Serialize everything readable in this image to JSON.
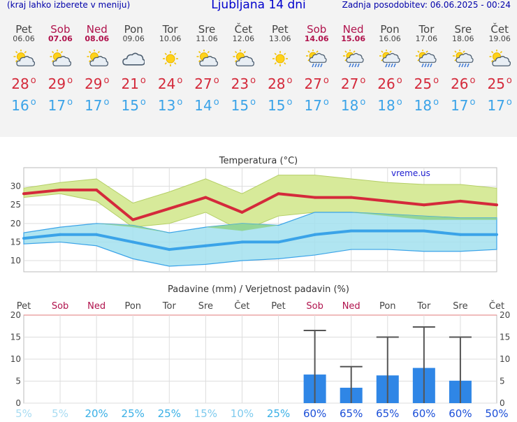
{
  "header": {
    "left_note": "(kraj lahko izberete v meniju)",
    "title": "Ljubljana 14 dni",
    "updated": "Zadnja posodobitev: 06.06.2025 - 00:24"
  },
  "days": [
    {
      "name": "Pet",
      "date": "06.06",
      "weekend": false,
      "icon": "sun-cloud-icon",
      "tmax": "28",
      "tmin": "16"
    },
    {
      "name": "Sob",
      "date": "07.06",
      "weekend": true,
      "icon": "sun-cloud-icon",
      "tmax": "29",
      "tmin": "17"
    },
    {
      "name": "Ned",
      "date": "08.06",
      "weekend": true,
      "icon": "sun-cloud-icon",
      "tmax": "29",
      "tmin": "17"
    },
    {
      "name": "Pon",
      "date": "09.06",
      "weekend": false,
      "icon": "cloud-icon",
      "tmax": "21",
      "tmin": "15"
    },
    {
      "name": "Tor",
      "date": "10.06",
      "weekend": false,
      "icon": "sun-icon",
      "tmax": "24",
      "tmin": "13"
    },
    {
      "name": "Sre",
      "date": "11.06",
      "weekend": false,
      "icon": "sun-cloud-icon",
      "tmax": "27",
      "tmin": "14"
    },
    {
      "name": "Čet",
      "date": "12.06",
      "weekend": false,
      "icon": "sun-cloud-icon",
      "tmax": "23",
      "tmin": "15"
    },
    {
      "name": "Pet",
      "date": "13.06",
      "weekend": false,
      "icon": "sun-icon",
      "tmax": "28",
      "tmin": "15"
    },
    {
      "name": "Sob",
      "date": "14.06",
      "weekend": true,
      "icon": "sun-rain-icon",
      "tmax": "27",
      "tmin": "17"
    },
    {
      "name": "Ned",
      "date": "15.06",
      "weekend": true,
      "icon": "sun-rain-icon",
      "tmax": "27",
      "tmin": "18"
    },
    {
      "name": "Pon",
      "date": "16.06",
      "weekend": false,
      "icon": "sun-rain-icon",
      "tmax": "26",
      "tmin": "18"
    },
    {
      "name": "Tor",
      "date": "17.06",
      "weekend": false,
      "icon": "sun-rain-icon",
      "tmax": "25",
      "tmin": "18"
    },
    {
      "name": "Sre",
      "date": "18.06",
      "weekend": false,
      "icon": "sun-rain-icon",
      "tmax": "26",
      "tmin": "17"
    },
    {
      "name": "Čet",
      "date": "19.06",
      "weekend": false,
      "icon": "sun-cloud-icon",
      "tmax": "25",
      "tmin": "17"
    }
  ],
  "colors": {
    "tmax": "#d42a3b",
    "tmin": "#3aa3e8",
    "weekend": "#b0124c",
    "max_band": "#d7ea9a",
    "min_band": "#a2e1ef",
    "overlap": "#8fd48a",
    "bar": "#2f86e6",
    "errorbar": "#555555"
  },
  "chart_data": [
    {
      "type": "line",
      "title": "Temperatura (°C)",
      "watermark": "vreme.us",
      "categories": [
        "06.06",
        "07.06",
        "08.06",
        "09.06",
        "10.06",
        "11.06",
        "12.06",
        "13.06",
        "14.06",
        "15.06",
        "16.06",
        "17.06",
        "18.06",
        "19.06"
      ],
      "ylim": [
        7,
        35
      ],
      "yticks": [
        10,
        15,
        20,
        25,
        30
      ],
      "grid": true,
      "series": [
        {
          "name": "max",
          "values": [
            28,
            29,
            29,
            21,
            24,
            27,
            23,
            28,
            27,
            27,
            26,
            25,
            26,
            25
          ]
        },
        {
          "name": "min",
          "values": [
            16,
            17,
            17,
            15,
            13,
            14,
            15,
            15,
            17,
            18,
            18,
            18,
            17,
            17
          ]
        }
      ],
      "bands": [
        {
          "name": "max_range",
          "lower": [
            27,
            28,
            26,
            19,
            20,
            23,
            18,
            22,
            23,
            23,
            22,
            21,
            21,
            21
          ],
          "upper": [
            29.5,
            31,
            32,
            25.5,
            28.5,
            32,
            28,
            33,
            33,
            32,
            31,
            30.5,
            30.5,
            29.5
          ]
        },
        {
          "name": "min_range",
          "lower": [
            14.5,
            15,
            14,
            10.5,
            8.5,
            9,
            10,
            10.5,
            11.5,
            13,
            13,
            12.5,
            12.5,
            13
          ],
          "upper": [
            17.5,
            19,
            20,
            19.5,
            17.5,
            19,
            20,
            19.5,
            23,
            23,
            22.5,
            22,
            21.5,
            21.5
          ]
        }
      ]
    },
    {
      "type": "bar",
      "title": "Padavine (mm) / Verjetnost padavin (%)",
      "categories": [
        "Pet",
        "Sob",
        "Ned",
        "Pon",
        "Tor",
        "Sre",
        "Čet",
        "Pet",
        "Sob",
        "Ned",
        "Pon",
        "Tor",
        "Sre",
        "Čet"
      ],
      "weekend": [
        false,
        true,
        true,
        false,
        false,
        false,
        false,
        false,
        true,
        true,
        false,
        false,
        false,
        false
      ],
      "ylim": [
        0,
        20
      ],
      "yticks": [
        0,
        5,
        10,
        15,
        20
      ],
      "grid": true,
      "values": [
        0,
        0,
        0,
        0,
        0,
        0,
        0,
        0,
        6.5,
        3.5,
        6.3,
        8,
        5.1,
        0
      ],
      "error_high": [
        0,
        0,
        0,
        0,
        0,
        0,
        0,
        0,
        16.5,
        8.3,
        15,
        17.3,
        15,
        0
      ],
      "probability_labels": [
        "5%",
        "5%",
        "20%",
        "25%",
        "25%",
        "15%",
        "10%",
        "25%",
        "60%",
        "65%",
        "65%",
        "60%",
        "60%",
        "50%"
      ],
      "probability_colors": [
        "#a9dcf2",
        "#a9dcf2",
        "#3ab0e6",
        "#3ab0e6",
        "#3ab0e6",
        "#7fcbee",
        "#7fcbee",
        "#3ab0e6",
        "#1b4fd8",
        "#1b4fd8",
        "#1b4fd8",
        "#1b4fd8",
        "#1b4fd8",
        "#1b4fd8"
      ]
    }
  ]
}
